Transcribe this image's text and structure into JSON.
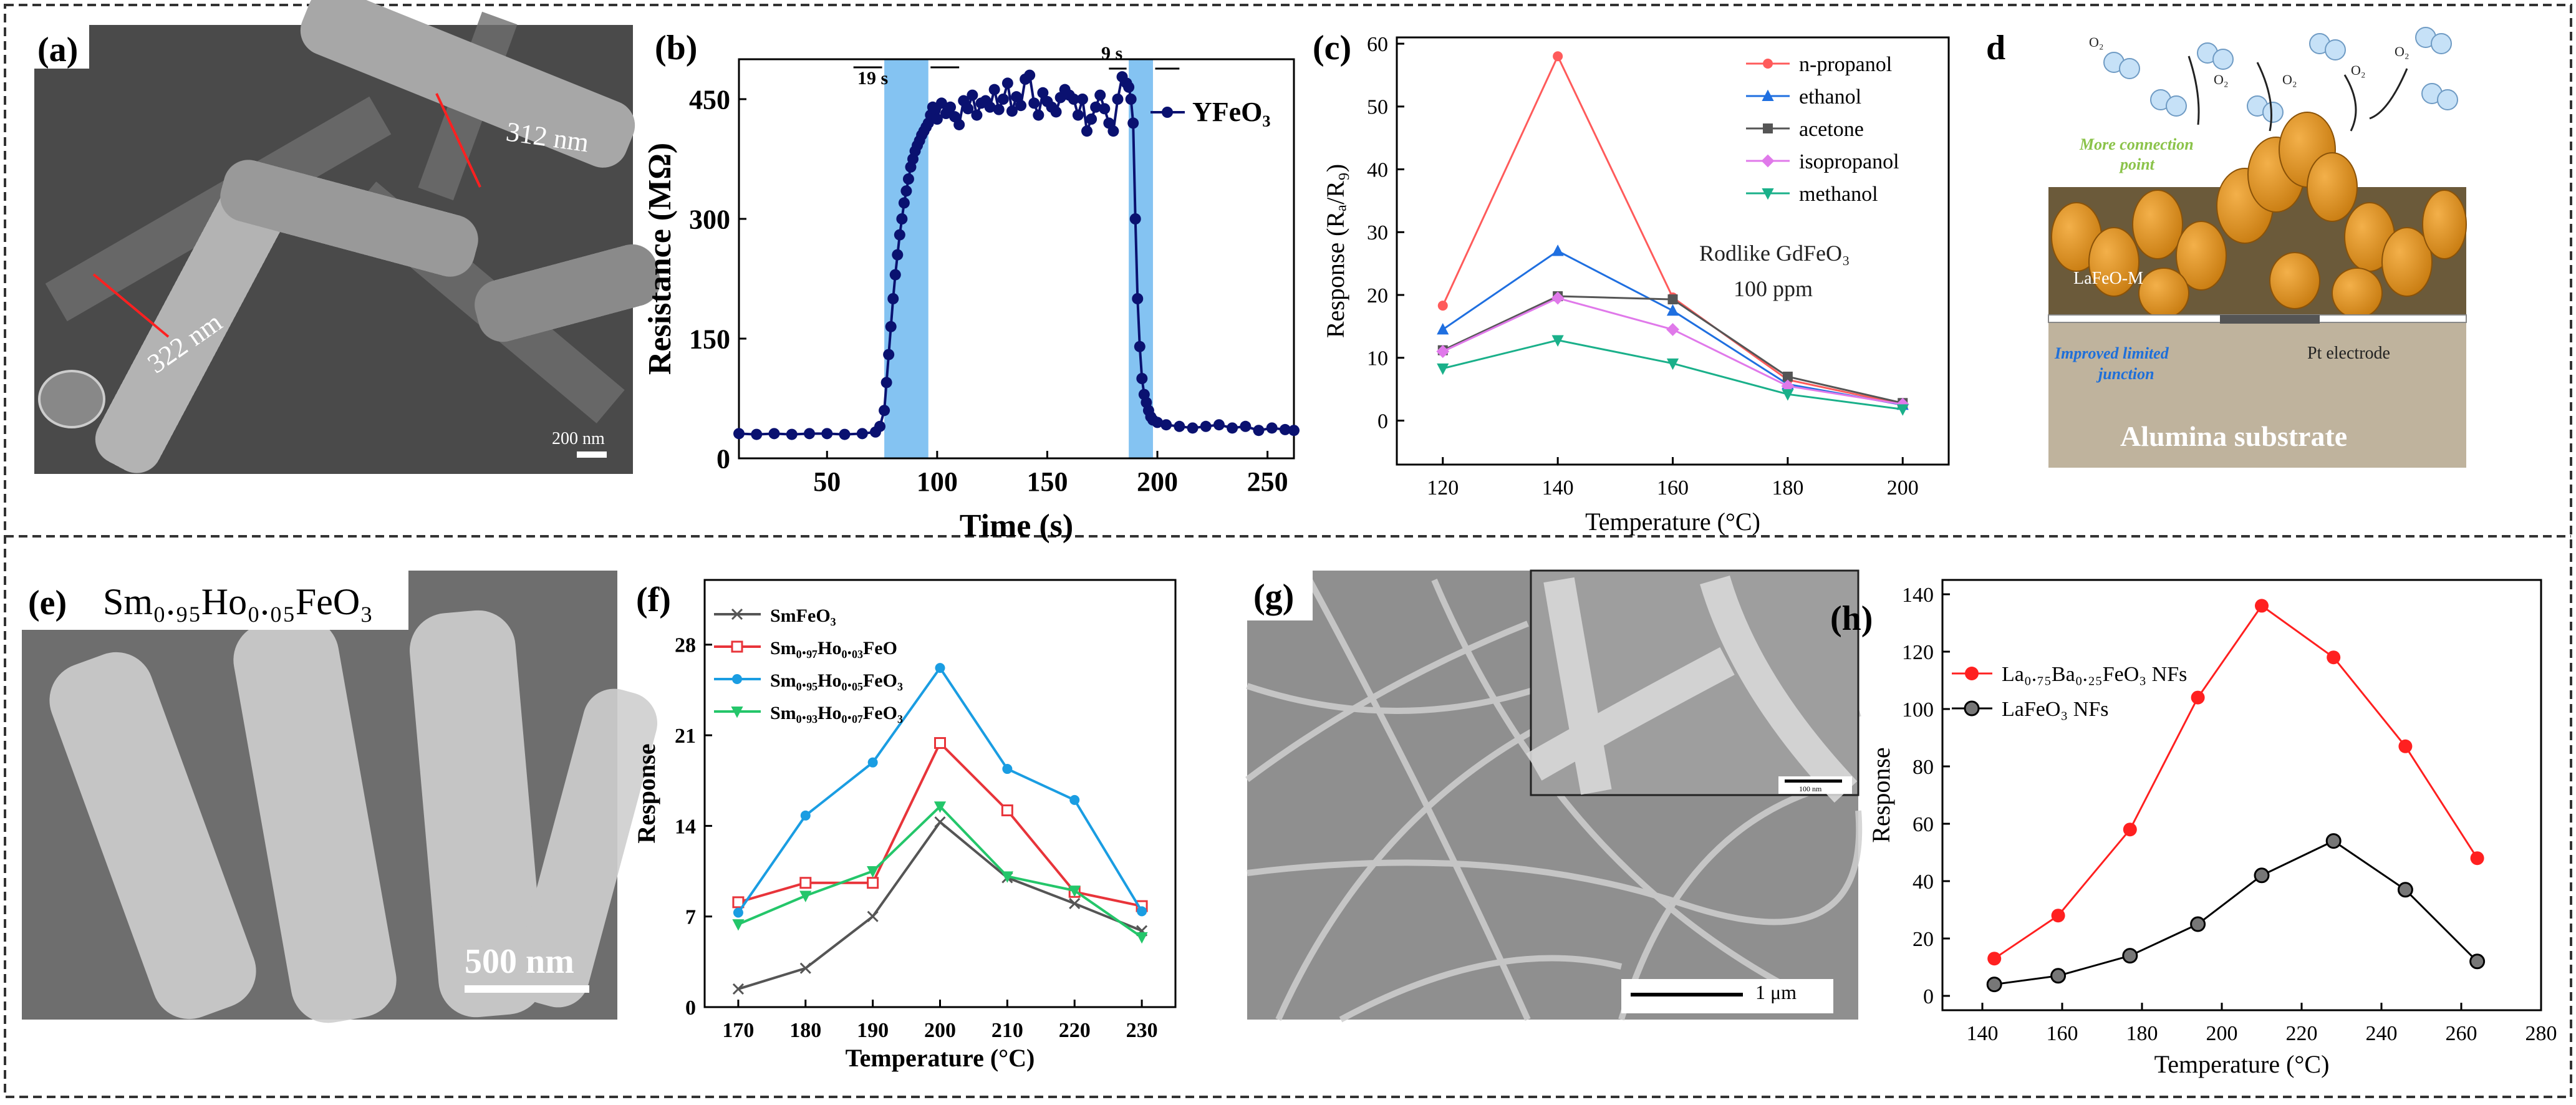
{
  "panels": {
    "a": {
      "label": "(a)",
      "annotations": [
        "312 nm",
        "322 nm"
      ],
      "scalebar": "200 nm"
    },
    "b": {
      "label": "(b)",
      "annot_left": "19 s",
      "annot_right": "9 s"
    },
    "c": {
      "label": "(c)",
      "note1": "Rodlike GdFeO₃",
      "note2": "100 ppm"
    },
    "d": {
      "label": "d",
      "o2": [
        "O₂",
        "O₂",
        "O₂",
        "O₂",
        "O₂"
      ],
      "more_connection": "More connection",
      "point": "point",
      "laFeO": "LaFeO-M",
      "improved": "Improved limited",
      "junction": "junction",
      "pt": "Pt electrode",
      "substrate": "Alumina substrate"
    },
    "e": {
      "label": "(e)",
      "formula": "Sm₀.₉₅Ho₀.₀₅FeO₃",
      "scalebar": "500 nm"
    },
    "f": {
      "label": "(f)"
    },
    "g": {
      "label": "(g)",
      "inset_scale": "100 nm",
      "scalebar": "1 μm"
    },
    "h": {
      "label": "(h)"
    }
  },
  "chart_data": [
    {
      "id": "b",
      "type": "line",
      "title": "",
      "xlabel": "Time (s)",
      "ylabel": "Resistance (MΩ)",
      "xlim": [
        10,
        262
      ],
      "ylim": [
        0,
        500
      ],
      "xticks": [
        50,
        100,
        150,
        200,
        250
      ],
      "yticks": [
        0,
        150,
        300,
        450
      ],
      "highlights": [
        [
          76,
          96
        ],
        [
          187,
          198
        ]
      ],
      "series": [
        {
          "name": "YFeO₃",
          "color": "#0a1170",
          "x": [
            10,
            18,
            26,
            34,
            42,
            50,
            58,
            66,
            72,
            74,
            76,
            77,
            78,
            79,
            80,
            81,
            82,
            83,
            84,
            85,
            86,
            87,
            88,
            89,
            90,
            91,
            92,
            93,
            94,
            95,
            96,
            97,
            98,
            99,
            100,
            102,
            104,
            106,
            108,
            110,
            112,
            114,
            116,
            118,
            120,
            122,
            124,
            126,
            128,
            130,
            132,
            134,
            136,
            138,
            140,
            142,
            144,
            146,
            148,
            150,
            152,
            154,
            156,
            158,
            160,
            162,
            164,
            166,
            168,
            170,
            172,
            174,
            176,
            178,
            180,
            182,
            184,
            186,
            187,
            188,
            189,
            190,
            191,
            192,
            193,
            194,
            195,
            196,
            197,
            198,
            200,
            204,
            210,
            216,
            222,
            228,
            234,
            240,
            246,
            252,
            258,
            262
          ],
          "y": [
            31,
            30,
            31,
            30,
            31,
            31,
            30,
            31,
            33,
            40,
            60,
            95,
            130,
            165,
            200,
            230,
            255,
            280,
            300,
            320,
            335,
            350,
            365,
            375,
            385,
            392,
            398,
            405,
            410,
            415,
            420,
            430,
            440,
            437,
            425,
            445,
            432,
            440,
            428,
            418,
            448,
            438,
            455,
            430,
            445,
            448,
            440,
            462,
            437,
            450,
            470,
            435,
            453,
            442,
            475,
            480,
            445,
            430,
            458,
            447,
            440,
            434,
            452,
            462,
            455,
            450,
            430,
            450,
            410,
            425,
            440,
            455,
            438,
            420,
            410,
            450,
            478,
            470,
            465,
            450,
            420,
            300,
            200,
            140,
            100,
            80,
            70,
            60,
            52,
            48,
            45,
            42,
            40,
            38,
            40,
            42,
            38,
            40,
            35,
            38,
            36,
            35
          ]
        }
      ]
    },
    {
      "id": "c",
      "type": "line",
      "xlabel": "Temperature (°C)",
      "ylabel": "Response (Rₐ/R₉)",
      "xlim": [
        112,
        208
      ],
      "ylim": [
        -7,
        61
      ],
      "xticks": [
        120,
        140,
        160,
        180,
        200
      ],
      "yticks": [
        0,
        10,
        20,
        30,
        40,
        50,
        60
      ],
      "x": [
        120,
        140,
        160,
        180,
        200
      ],
      "series": [
        {
          "name": "n-propanol",
          "color": "#ff5b5b",
          "marker": "circle",
          "values": [
            18.3,
            58,
            19.6,
            6.5,
            2.6
          ]
        },
        {
          "name": "ethanol",
          "color": "#1f6fe0",
          "marker": "triangle-up",
          "values": [
            14.5,
            27,
            17.5,
            5.8,
            2.5
          ]
        },
        {
          "name": "acetone",
          "color": "#555555",
          "marker": "square",
          "values": [
            11.2,
            19.8,
            19.3,
            7,
            2.8
          ]
        },
        {
          "name": "isopropanol",
          "color": "#e079ea",
          "marker": "diamond",
          "values": [
            11,
            19.5,
            14.5,
            5.5,
            2.6
          ]
        },
        {
          "name": "methanol",
          "color": "#1ab08a",
          "marker": "triangle-down",
          "values": [
            8.3,
            12.8,
            9.1,
            4.2,
            1.8
          ]
        }
      ]
    },
    {
      "id": "f",
      "type": "line",
      "xlabel": "Temperature (°C)",
      "ylabel": "Response",
      "xlim": [
        165,
        235
      ],
      "ylim": [
        0,
        33
      ],
      "xticks": [
        170,
        180,
        190,
        200,
        210,
        220,
        230
      ],
      "yticks": [
        0,
        7,
        14,
        21,
        28
      ],
      "x": [
        170,
        180,
        190,
        200,
        210,
        220,
        230
      ],
      "series": [
        {
          "name": "SmFeO₃",
          "color": "#555555",
          "marker": "x",
          "values": [
            1.4,
            3,
            7,
            14.3,
            10,
            8,
            5.9
          ]
        },
        {
          "name": "Sm₀.₉₇Ho₀.₀₃FeO",
          "color": "#e8343a",
          "marker": "square-open",
          "values": [
            8.1,
            9.6,
            9.6,
            20.4,
            15.2,
            8.9,
            7.8
          ]
        },
        {
          "name": "Sm₀.₉₅Ho₀.₀₅FeO₃",
          "color": "#1a9de2",
          "marker": "circle",
          "values": [
            7.3,
            14.8,
            18.9,
            26.2,
            18.4,
            16,
            7.4
          ]
        },
        {
          "name": "Sm₀.₉₃Ho₀.₀₇FeO₃",
          "color": "#24c66a",
          "marker": "triangle-down",
          "values": [
            6.4,
            8.6,
            10.5,
            15.5,
            10.1,
            9,
            5.4
          ]
        }
      ]
    },
    {
      "id": "h",
      "type": "line",
      "xlabel": "Temperature (°C)",
      "ylabel": "Response",
      "xlim": [
        130,
        280
      ],
      "ylim": [
        -5,
        145
      ],
      "xticks": [
        140,
        160,
        180,
        200,
        220,
        240,
        260,
        280
      ],
      "yticks": [
        0,
        20,
        40,
        60,
        80,
        100,
        120,
        140
      ],
      "x": [
        143,
        159,
        177,
        194,
        210,
        228,
        246,
        264
      ],
      "series": [
        {
          "name": "La₀.₇₅Ba₀.₂₅FeO₃ NFs",
          "color": "#ff2020",
          "marker": "circle",
          "values": [
            13,
            28,
            58,
            104,
            136,
            118,
            87,
            48
          ]
        },
        {
          "name": "LaFeO₃ NFs",
          "color": "#000000",
          "marker": "circle-dark",
          "values": [
            4,
            7,
            14,
            25,
            42,
            54,
            37,
            12
          ]
        }
      ]
    }
  ]
}
